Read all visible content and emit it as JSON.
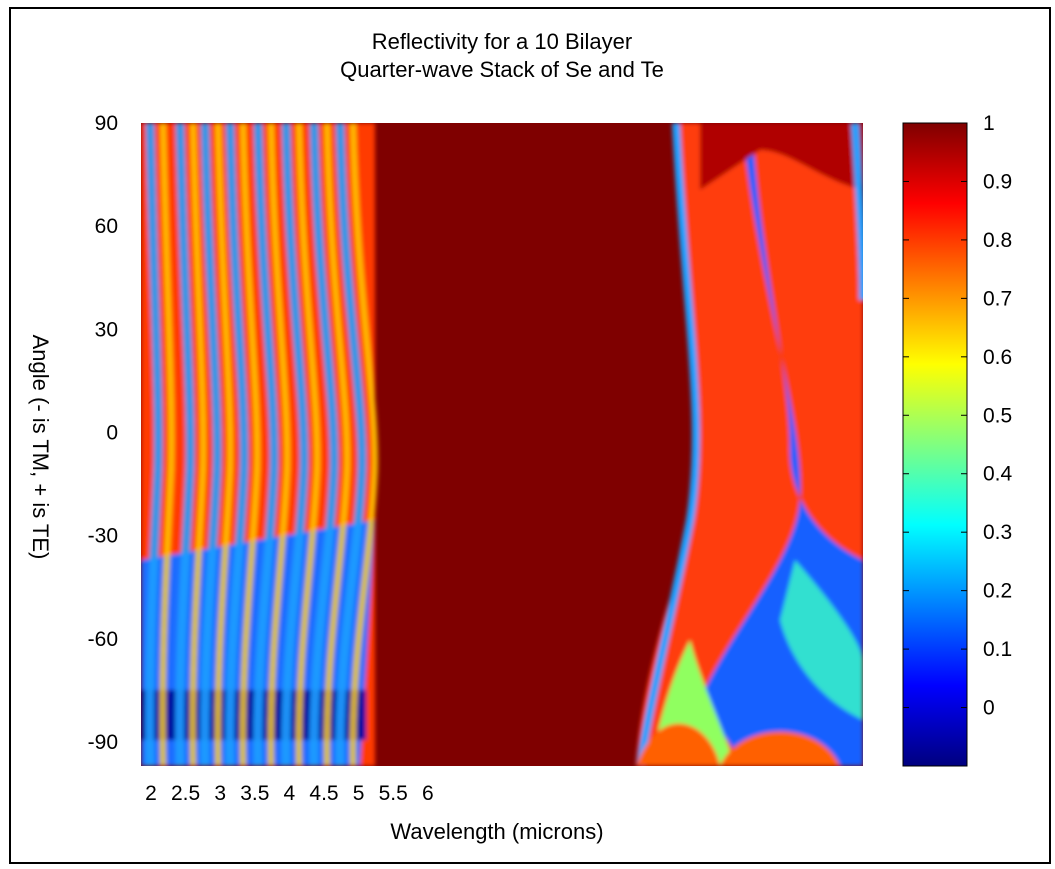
{
  "chart_data": {
    "type": "heatmap",
    "title": [
      "Reflectivity for a 10 Bilayer",
      "Quarter-wave Stack of Se and Te"
    ],
    "xlabel": "Wavelength (microns)",
    "ylabel": "Angle (- is TM, + is TE)",
    "x_ticks": [
      "2",
      "2.5",
      "3",
      "3.5",
      "4",
      "4.5",
      "5",
      "5.5",
      "6"
    ],
    "y_ticks": [
      "90",
      "60",
      "30",
      "0",
      "-30",
      "-60",
      "-90"
    ],
    "y_tick_values": [
      90,
      60,
      30,
      0,
      -30,
      -60,
      -90
    ],
    "ylim": [
      -97,
      90
    ],
    "colorbar": {
      "ticks": [
        "1",
        "0.9",
        "0.8",
        "0.7",
        "0.6",
        "0.5",
        "0.4",
        "0.3",
        "0.2",
        "0.1",
        "0"
      ],
      "tick_values": [
        1,
        0.9,
        0.8,
        0.7,
        0.6,
        0.5,
        0.4,
        0.3,
        0.2,
        0.1,
        0
      ],
      "range": [
        -0.1,
        1
      ],
      "colormap": "jet"
    },
    "colors": {
      "high": "#7f0000",
      "mid": "#ffff00",
      "low": "#00007f",
      "hole": "#ffffff"
    }
  }
}
